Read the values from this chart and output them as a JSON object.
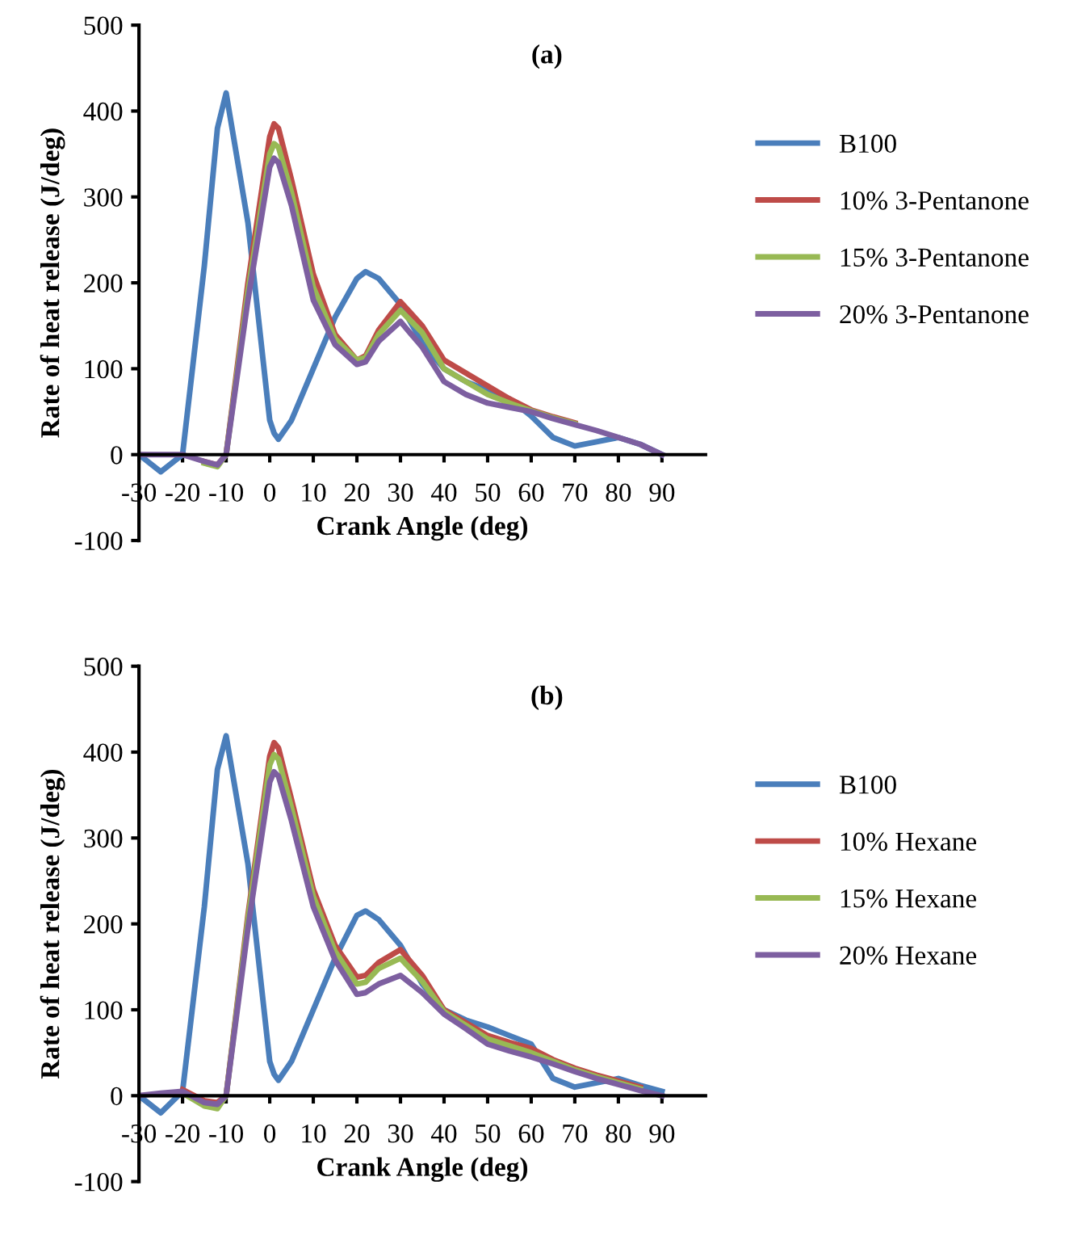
{
  "chart_data": [
    {
      "type": "line",
      "title": "(a)",
      "xlabel": "Crank Angle (deg)",
      "ylabel": "Rate of heat release (J/deg)",
      "x": [
        -30,
        -25,
        -20,
        -15,
        -12,
        -10,
        -5,
        0,
        1,
        2,
        5,
        10,
        15,
        20,
        22,
        25,
        30,
        35,
        40,
        45,
        50,
        55,
        60,
        65,
        70,
        75,
        80,
        85,
        90
      ],
      "series": [
        {
          "name": "B100",
          "color": "#4a7ebb",
          "values": [
            0,
            -20,
            0,
            220,
            380,
            421,
            270,
            40,
            25,
            18,
            40,
            100,
            160,
            205,
            213,
            205,
            175,
            130,
            100,
            85,
            75,
            65,
            45,
            20,
            10,
            15,
            20,
            12,
            0
          ]
        },
        {
          "name": "10% 3-Pentanone",
          "color": "#be4b48",
          "values": [
            null,
            null,
            null,
            -8,
            -12,
            0,
            200,
            370,
            385,
            380,
            320,
            210,
            140,
            110,
            115,
            145,
            178,
            150,
            110,
            95,
            80,
            65,
            52,
            44,
            37,
            null,
            null,
            null,
            null
          ]
        },
        {
          "name": "15% 3-Pentanone",
          "color": "#98b954",
          "values": [
            null,
            null,
            null,
            -10,
            -14,
            0,
            190,
            350,
            362,
            358,
            305,
            195,
            135,
            110,
            113,
            140,
            168,
            142,
            100,
            85,
            70,
            60,
            51,
            43,
            36,
            null,
            null,
            null,
            null
          ]
        },
        {
          "name": "20% 3-Pentanone",
          "color": "#7d5fa0",
          "values": [
            0,
            0,
            0,
            -8,
            -12,
            0,
            180,
            335,
            345,
            340,
            290,
            180,
            128,
            105,
            108,
            132,
            155,
            125,
            85,
            70,
            60,
            55,
            50,
            42,
            35,
            28,
            20,
            12,
            0
          ]
        }
      ],
      "xlim": [
        -30,
        100
      ],
      "ylim": [
        -100,
        500
      ],
      "xticks": [
        -30,
        -20,
        -10,
        0,
        10,
        20,
        30,
        40,
        50,
        60,
        70,
        80,
        90
      ],
      "yticks": [
        -100,
        0,
        100,
        200,
        300,
        400,
        500
      ],
      "legend": "right",
      "grid": false,
      "marker": "none",
      "line_style": "solid"
    },
    {
      "type": "line",
      "title": "(b)",
      "xlabel": "Crank Angle (deg)",
      "ylabel": "Rate of heat release (J/deg)",
      "x": [
        -30,
        -25,
        -20,
        -15,
        -12,
        -10,
        -5,
        0,
        1,
        2,
        5,
        10,
        15,
        20,
        22,
        25,
        30,
        35,
        40,
        45,
        50,
        55,
        60,
        65,
        70,
        75,
        80,
        85,
        90
      ],
      "series": [
        {
          "name": "B100",
          "color": "#4a7ebb",
          "values": [
            0,
            -20,
            5,
            220,
            380,
            419,
            270,
            40,
            25,
            18,
            40,
            100,
            160,
            210,
            215,
            205,
            175,
            130,
            100,
            88,
            80,
            70,
            60,
            20,
            10,
            15,
            20,
            12,
            5
          ]
        },
        {
          "name": "10% Hexane",
          "color": "#be4b48",
          "values": [
            null,
            null,
            7,
            -6,
            -8,
            0,
            210,
            395,
            411,
            405,
            345,
            240,
            175,
            138,
            140,
            155,
            170,
            140,
            100,
            85,
            70,
            62,
            55,
            42,
            32,
            24,
            17,
            10,
            null
          ]
        },
        {
          "name": "15% Hexane",
          "color": "#98b954",
          "values": [
            null,
            null,
            3,
            -12,
            -15,
            0,
            205,
            385,
            397,
            392,
            335,
            232,
            168,
            130,
            132,
            148,
            160,
            133,
            98,
            82,
            66,
            58,
            50,
            40,
            30,
            22,
            15,
            8,
            null
          ]
        },
        {
          "name": "20% Hexane",
          "color": "#7d5fa0",
          "values": [
            0,
            3,
            5,
            -8,
            -10,
            0,
            195,
            365,
            377,
            372,
            320,
            220,
            158,
            118,
            120,
            130,
            140,
            120,
            95,
            78,
            60,
            52,
            45,
            37,
            28,
            20,
            13,
            6,
            0
          ]
        }
      ],
      "xlim": [
        -30,
        100
      ],
      "ylim": [
        -100,
        500
      ],
      "xticks": [
        -30,
        -20,
        -10,
        0,
        10,
        20,
        30,
        40,
        50,
        60,
        70,
        80,
        90
      ],
      "yticks": [
        -100,
        0,
        100,
        200,
        300,
        400,
        500
      ],
      "legend": "right",
      "grid": false,
      "marker": "none",
      "line_style": "solid"
    }
  ]
}
